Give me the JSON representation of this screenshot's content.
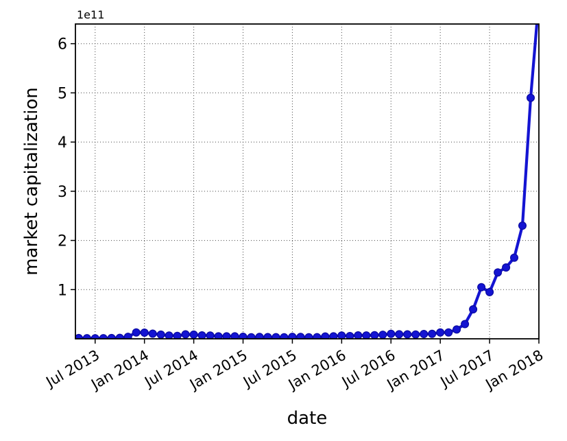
{
  "figure": {
    "background": "#ffffff",
    "text_color": "#000000",
    "spine_color": "#000000",
    "grid_color": "#444444"
  },
  "chart_data": {
    "type": "line",
    "title": "",
    "xlabel": "date",
    "ylabel": "market capitalization",
    "y_offset_text": "1e11",
    "y_unit": "1e11",
    "ylim": [
      0,
      6.4
    ],
    "y_ticks": [
      1,
      2,
      3,
      4,
      5,
      6
    ],
    "x_tick_labels": [
      "Jul 2013",
      "Jan 2014",
      "Jul 2014",
      "Jan 2015",
      "Jul 2015",
      "Jan 2016",
      "Jul 2016",
      "Jan 2017",
      "Jul 2017",
      "Jan 2018"
    ],
    "x_tick_rotation_deg": 30,
    "grid": {
      "visible": true,
      "style": "dotted"
    },
    "legend": {
      "visible": false
    },
    "series": [
      {
        "name": "market capitalization",
        "color": "#1414d2",
        "marker": "circle",
        "marker_edge_color": "#0909a0",
        "x": [
          "2013-05",
          "2013-06",
          "2013-07",
          "2013-08",
          "2013-09",
          "2013-10",
          "2013-11",
          "2013-12",
          "2014-01",
          "2014-02",
          "2014-03",
          "2014-04",
          "2014-05",
          "2014-06",
          "2014-07",
          "2014-08",
          "2014-09",
          "2014-10",
          "2014-11",
          "2014-12",
          "2015-01",
          "2015-02",
          "2015-03",
          "2015-04",
          "2015-05",
          "2015-06",
          "2015-07",
          "2015-08",
          "2015-09",
          "2015-10",
          "2015-11",
          "2015-12",
          "2016-01",
          "2016-02",
          "2016-03",
          "2016-04",
          "2016-05",
          "2016-06",
          "2016-07",
          "2016-08",
          "2016-09",
          "2016-10",
          "2016-11",
          "2016-12",
          "2017-01",
          "2017-02",
          "2017-03",
          "2017-04",
          "2017-05",
          "2017-06",
          "2017-07",
          "2017-08",
          "2017-09",
          "2017-10",
          "2017-11",
          "2017-12",
          "2018-01"
        ],
        "values": [
          0.015,
          0.012,
          0.011,
          0.013,
          0.015,
          0.019,
          0.04,
          0.13,
          0.125,
          0.105,
          0.085,
          0.065,
          0.06,
          0.09,
          0.085,
          0.07,
          0.065,
          0.05,
          0.05,
          0.05,
          0.042,
          0.032,
          0.038,
          0.035,
          0.033,
          0.032,
          0.04,
          0.038,
          0.032,
          0.034,
          0.048,
          0.05,
          0.065,
          0.056,
          0.07,
          0.068,
          0.072,
          0.082,
          0.1,
          0.092,
          0.09,
          0.088,
          0.098,
          0.1,
          0.13,
          0.13,
          0.19,
          0.3,
          0.6,
          1.05,
          0.95,
          1.35,
          1.45,
          1.65,
          2.3,
          4.9,
          6.9
        ]
      }
    ]
  }
}
